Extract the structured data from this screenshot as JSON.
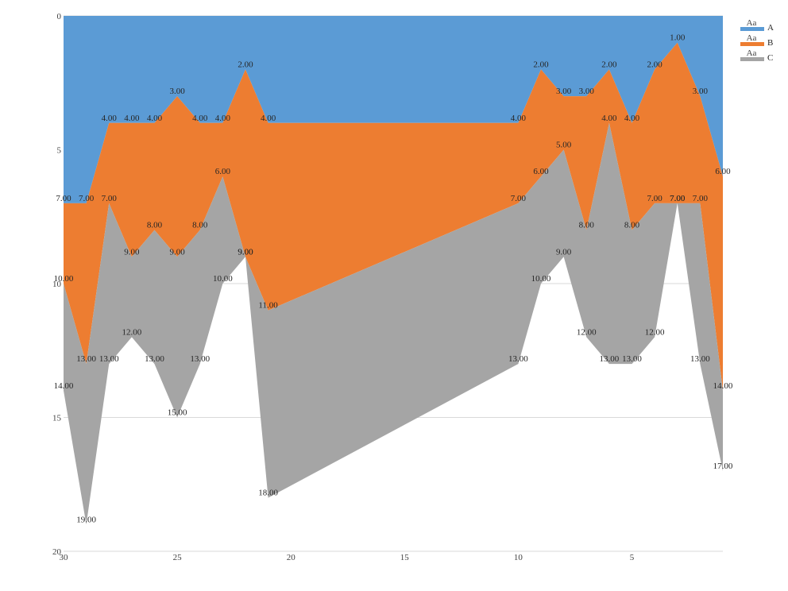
{
  "chart_data": {
    "type": "area",
    "stacked": true,
    "x": [
      30,
      29,
      28,
      27,
      26,
      25,
      24,
      23,
      22,
      21,
      10,
      9,
      8,
      7,
      6,
      5,
      4,
      3,
      2,
      1
    ],
    "series": [
      {
        "name": "A",
        "color": "#5b9bd5",
        "values": [
          7,
          7,
          4,
          4,
          4,
          3,
          4,
          4,
          2,
          4,
          4,
          2,
          3,
          3,
          2,
          4,
          2,
          1,
          3,
          6
        ],
        "labels": [
          "7.00",
          "7.00",
          "4.00",
          "4.00",
          "4.00",
          "3.00",
          "4.00",
          "4.00",
          "2.00",
          "4.00",
          "4.00",
          "2.00",
          "3.00",
          "3.00",
          "2.00",
          "4.00",
          "2.00",
          "1.00",
          "3.00",
          "6.00"
        ]
      },
      {
        "name": "B",
        "color": "#ed7d31",
        "values": [
          3,
          6,
          3,
          5,
          4,
          6,
          4,
          2,
          7,
          7,
          3,
          4,
          2,
          5,
          2,
          4,
          5,
          6,
          4,
          8
        ],
        "labels": [
          "10.00",
          "13.00",
          "7.00",
          "9.00",
          "8.00",
          "9.00",
          "8.00",
          "6.00",
          "9.00",
          "11.00",
          "7.00",
          "6.00",
          "5.00",
          "8.00",
          "4.00",
          "8.00",
          "7.00",
          "7.00",
          "7.00",
          "14.00"
        ]
      },
      {
        "name": "C",
        "color": "#a5a5a5",
        "values": [
          4,
          6,
          6,
          3,
          5,
          6,
          5,
          4,
          0,
          7,
          6,
          4,
          4,
          4,
          9,
          5,
          5,
          0,
          6,
          3
        ],
        "labels": [
          "14.00",
          "19.00",
          "13.00",
          "12.00",
          "13.00",
          "15.00",
          "13.00",
          "10.00",
          "9.00",
          "18.00",
          "13.00",
          "10.00",
          "9.00",
          "12.00",
          "13.00",
          "13.00",
          "12.00",
          "7.00",
          "13.00",
          "17.00"
        ]
      }
    ],
    "x_axis": {
      "range": [
        30,
        1
      ],
      "reversed": true,
      "ticks": [
        "30",
        "25",
        "20",
        "15",
        "10",
        "5"
      ],
      "tick_values": [
        30,
        25,
        20,
        15,
        10,
        5
      ]
    },
    "y_axis": {
      "range": [
        0,
        20
      ],
      "reversed": true,
      "ticks": [
        "0",
        "5",
        "10",
        "15",
        "20"
      ],
      "tick_values": [
        0,
        5,
        10,
        15,
        20
      ]
    },
    "grid": "horizontal",
    "legend": {
      "position": "top-right",
      "swatch_text": "Aa"
    }
  }
}
